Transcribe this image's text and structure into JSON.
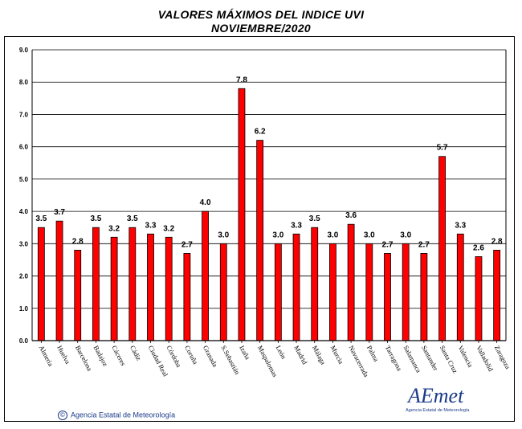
{
  "header": {
    "title": "VALORES MÁXIMOS DEL INDICE UVI",
    "subtitle": "NOVIEMBRE/2020"
  },
  "footer": {
    "copyright": "Agencia Estatal de Meteorología",
    "copyright_symbol": "©",
    "logo_text": "AEmet",
    "logo_subtext": "Agencia Estatal de Meteorología"
  },
  "colors": {
    "bar_fill": "#ff0000",
    "bar_stroke": "#000000",
    "grid": "#000000",
    "brand": "#1a3a8a"
  },
  "chart_data": {
    "type": "bar",
    "title": "VALORES MÁXIMOS DEL INDICE UVI",
    "subtitle": "NOVIEMBRE/2020",
    "xlabel": "",
    "ylabel": "",
    "ylim": [
      0,
      9
    ],
    "yticks": [
      "0.0",
      "1.0",
      "2.0",
      "3.0",
      "4.0",
      "5.0",
      "6.0",
      "7.0",
      "8.0",
      "9.0"
    ],
    "grid": true,
    "categories": [
      "Almería",
      "Huelva",
      "Barcelona",
      "Badajoz",
      "Cáceres",
      "Cádiz",
      "Ciudad Real",
      "Córdoba",
      "Coruña",
      "Granada",
      "S.Sebastián",
      "Izaña",
      "Maspalomas",
      "León",
      "Madrid",
      "Málaga",
      "Murcia",
      "Navacerrada",
      "Palma",
      "Tarragona",
      "Salamanca",
      "Santander",
      "Santa Cruz",
      "Valencia",
      "Valladolid",
      "Zaragoza"
    ],
    "values": [
      3.5,
      3.7,
      2.8,
      3.5,
      3.2,
      3.5,
      3.3,
      3.2,
      2.7,
      4.0,
      3.0,
      7.8,
      6.2,
      3.0,
      3.3,
      3.5,
      3.0,
      3.6,
      3.0,
      2.7,
      3.0,
      2.7,
      5.7,
      3.3,
      2.6,
      2.8
    ],
    "labels": [
      "3.5",
      "3.7",
      "2.8",
      "3.5",
      "3.2",
      "3.5",
      "3.3",
      "3.2",
      "2.7",
      "4.0",
      "3.0",
      "7.8",
      "6.2",
      "3.0",
      "3.3",
      "3.5",
      "3.0",
      "3.6",
      "3.0",
      "2.7",
      "3.0",
      "2.7",
      "5.7",
      "3.3",
      "2.6",
      "2.8"
    ]
  }
}
